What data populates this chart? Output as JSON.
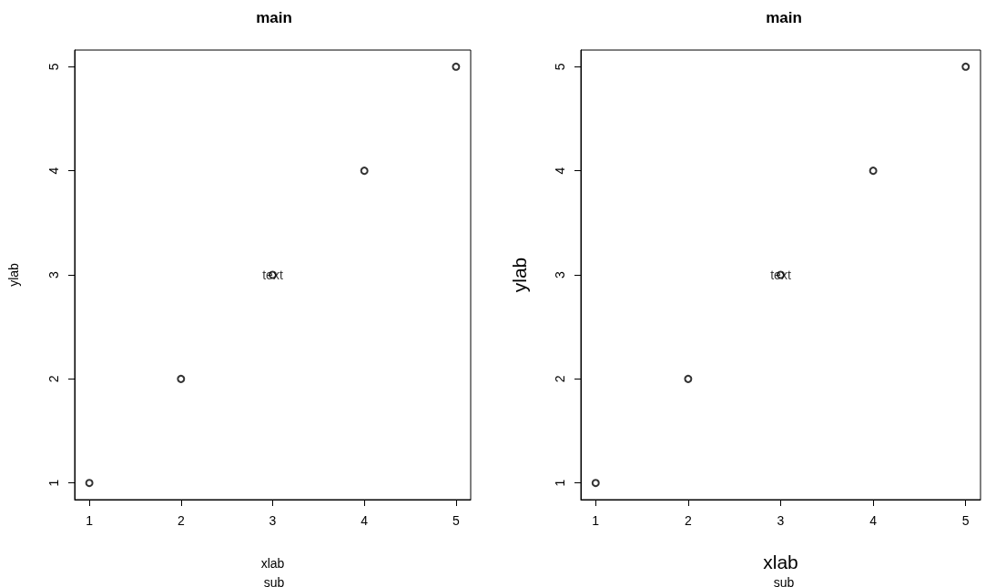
{
  "chart_data": [
    {
      "type": "scatter",
      "title": "main",
      "subtitle": "sub",
      "xlabel": "xlab",
      "ylabel": "ylab",
      "x": [
        1,
        2,
        3,
        4,
        5
      ],
      "values": [
        1,
        2,
        3,
        4,
        5
      ],
      "color": "#000000",
      "marker": "circle",
      "xlim": [
        0.84,
        5.16
      ],
      "ylim": [
        0.84,
        5.16
      ],
      "xticks": [
        1,
        2,
        3,
        4,
        5
      ],
      "yticks": [
        1,
        2,
        3,
        4,
        5
      ],
      "annotations": [
        {
          "text": "text",
          "x": 3,
          "y": 3
        }
      ]
    },
    {
      "type": "scatter",
      "title": "main",
      "subtitle": "sub",
      "xlabel": "xlab",
      "ylabel": "ylab",
      "x": [
        1,
        2,
        3,
        4,
        5
      ],
      "values": [
        1,
        2,
        3,
        4,
        5
      ],
      "color": "#000000",
      "marker": "circle",
      "xlim": [
        0.84,
        5.16
      ],
      "ylim": [
        0.84,
        5.16
      ],
      "xticks": [
        1,
        2,
        3,
        4,
        5
      ],
      "yticks": [
        1,
        2,
        3,
        4,
        5
      ],
      "annotations": [
        {
          "text": "text",
          "x": 3,
          "y": 3
        }
      ]
    }
  ]
}
